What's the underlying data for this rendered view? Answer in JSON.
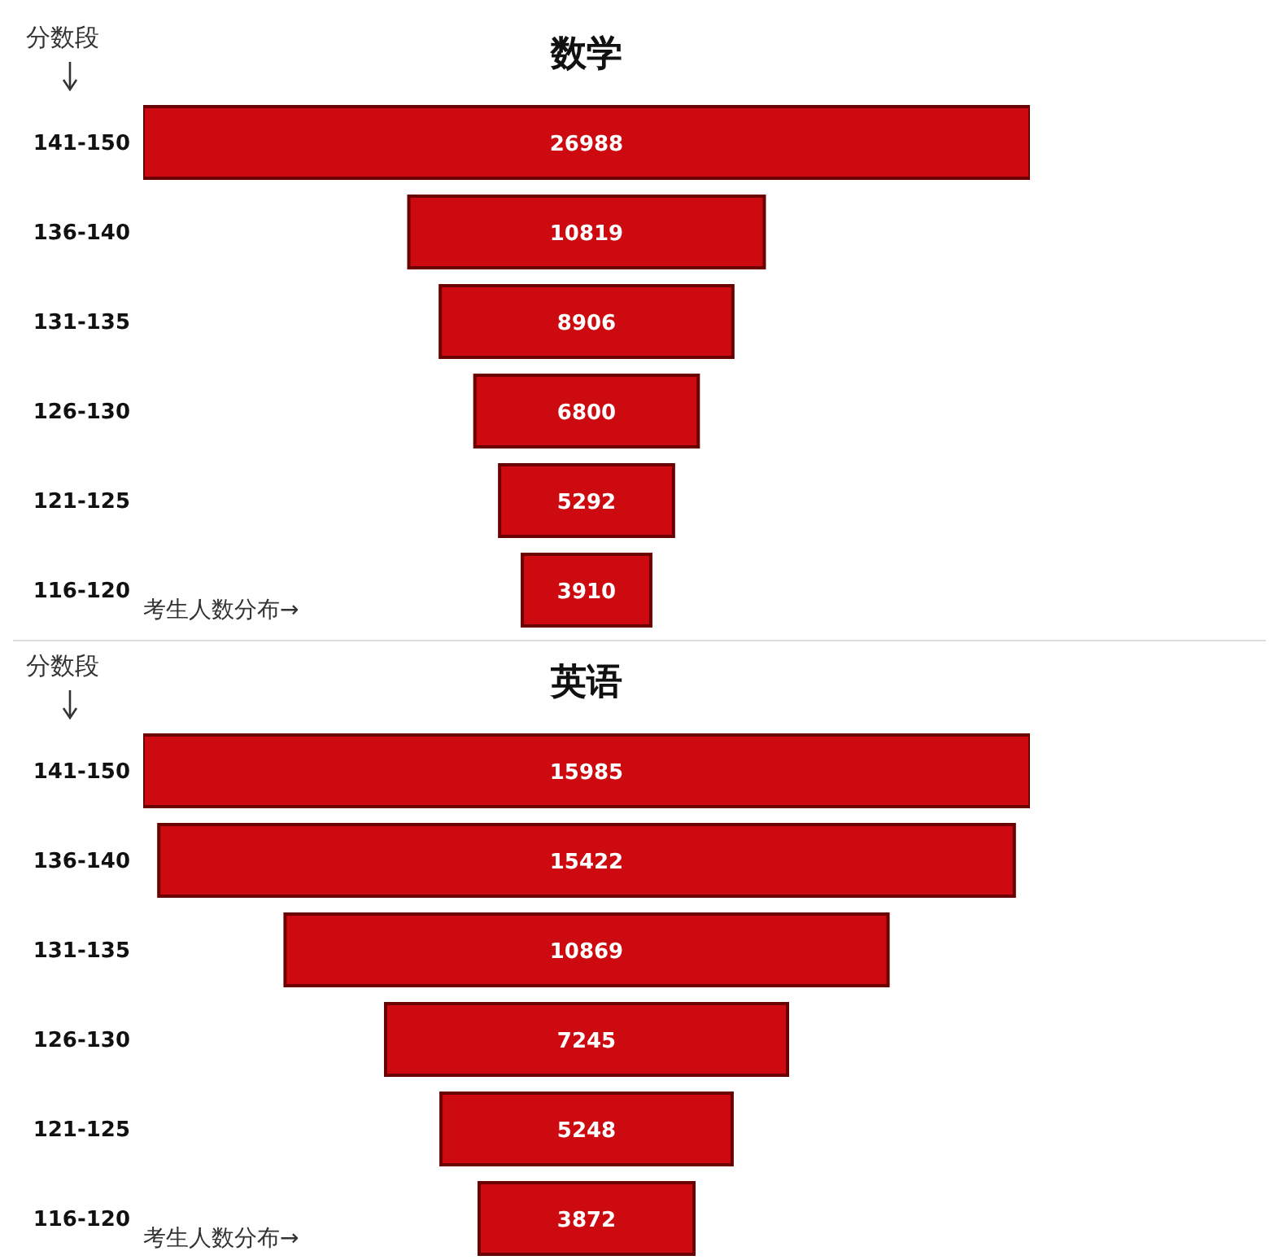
{
  "chart_data": [
    {
      "type": "other",
      "title": "数学",
      "ylabel": "分数段",
      "xlabel": "考生人数分布→",
      "data_labels": true,
      "color": "#cc0a0f",
      "categories": [
        "141-150",
        "136-140",
        "131-135",
        "126-130",
        "121-125",
        "116-120"
      ],
      "values": [
        26988,
        10819,
        8906,
        6800,
        5292,
        3910
      ]
    },
    {
      "type": "other",
      "title": "英语",
      "ylabel": "分数段",
      "xlabel": "考生人数分布→",
      "data_labels": true,
      "color": "#cc0a0f",
      "categories": [
        "141-150",
        "136-140",
        "131-135",
        "126-130",
        "121-125",
        "116-120"
      ],
      "values": [
        15985,
        15422,
        10869,
        7245,
        5248,
        3872
      ]
    }
  ]
}
